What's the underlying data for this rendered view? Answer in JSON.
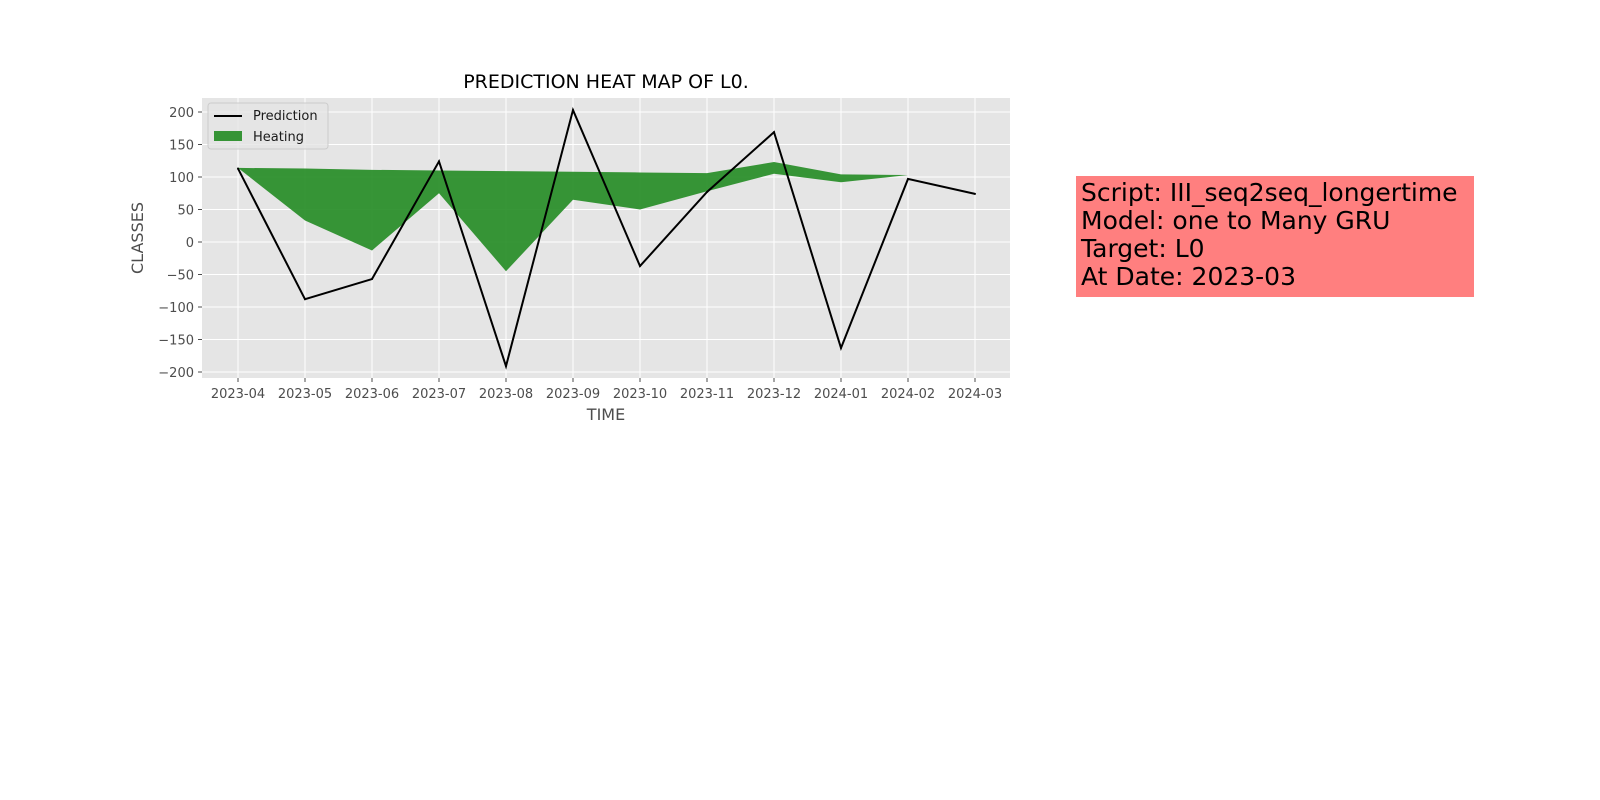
{
  "chart_data": {
    "type": "area",
    "title": "PREDICTION HEAT MAP OF L0.",
    "xlabel": "TIME",
    "ylabel": "CLASSES",
    "x": [
      "2023-04",
      "2023-05",
      "2023-06",
      "2023-07",
      "2023-08",
      "2023-09",
      "2023-10",
      "2023-11",
      "2023-12",
      "2024-01",
      "2024-02",
      "2024-03"
    ],
    "ylim": [
      -210,
      220
    ],
    "yticks": [
      200,
      150,
      100,
      50,
      0,
      -50,
      -100,
      -150,
      -200
    ],
    "ytick_labels": [
      "200",
      "150",
      "100",
      "50",
      "0",
      "−50",
      "−100",
      "−150",
      "−200"
    ],
    "grid": true,
    "legend_position": "top-left",
    "series": [
      {
        "name": "Prediction",
        "kind": "line",
        "color": "#000000",
        "values": [
          113,
          -88,
          -57,
          124,
          -191,
          203,
          -37,
          77,
          169,
          -163,
          97,
          74
        ]
      },
      {
        "name": "Heating",
        "kind": "fill_between",
        "color": "#228b22",
        "upper": [
          114,
          113,
          111,
          110,
          109,
          108,
          107,
          106,
          123,
          104,
          103,
          102
        ],
        "lower": [
          114,
          33,
          -13,
          75,
          -45,
          65,
          50,
          78,
          105,
          92,
          103,
          102
        ]
      }
    ]
  },
  "info_box": {
    "lines": [
      "Script: III_seq2seq_longertime",
      "Model: one to Many GRU",
      "Target: L0",
      "At Date: 2023-03"
    ],
    "background": "#ff7f7f"
  }
}
